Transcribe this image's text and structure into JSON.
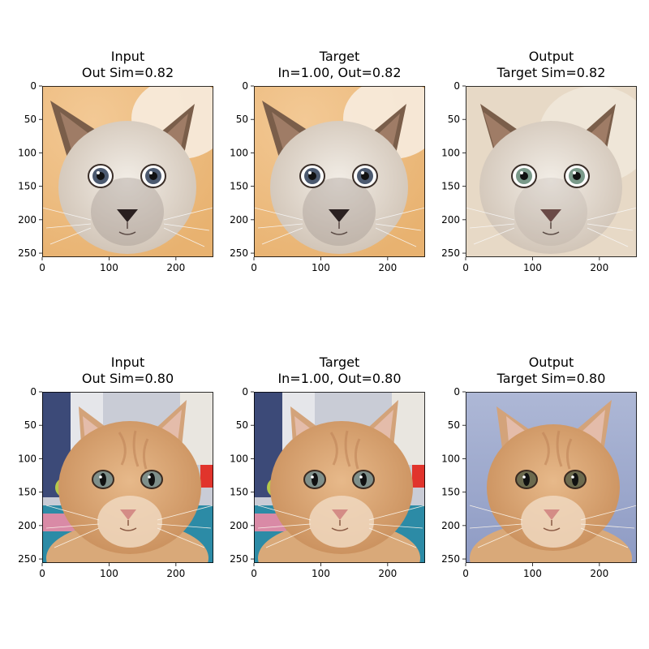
{
  "chart_data": {
    "type": "image-grid",
    "xlim": [
      0,
      256
    ],
    "ylim": [
      256,
      0
    ],
    "xticks": [
      0,
      100,
      200
    ],
    "yticks": [
      0,
      50,
      100,
      150,
      200,
      250
    ],
    "panels": [
      {
        "row": 0,
        "col": 0,
        "title_line1": "Input",
        "title_line2": "Out Sim=0.82",
        "image": "siamese-cat-original"
      },
      {
        "row": 0,
        "col": 1,
        "title_line1": "Target",
        "title_line2": "In=1.00, Out=0.82",
        "image": "siamese-cat-original"
      },
      {
        "row": 0,
        "col": 2,
        "title_line1": "Output",
        "title_line2": "Target Sim=0.82",
        "image": "siamese-cat-generated"
      },
      {
        "row": 1,
        "col": 0,
        "title_line1": "Input",
        "title_line2": "Out Sim=0.80",
        "image": "orange-tabby-original"
      },
      {
        "row": 1,
        "col": 1,
        "title_line1": "Target",
        "title_line2": "In=1.00, Out=0.80",
        "image": "orange-tabby-original"
      },
      {
        "row": 1,
        "col": 2,
        "title_line1": "Output",
        "title_line2": "Target Sim=0.80",
        "image": "orange-tabby-generated"
      }
    ]
  }
}
